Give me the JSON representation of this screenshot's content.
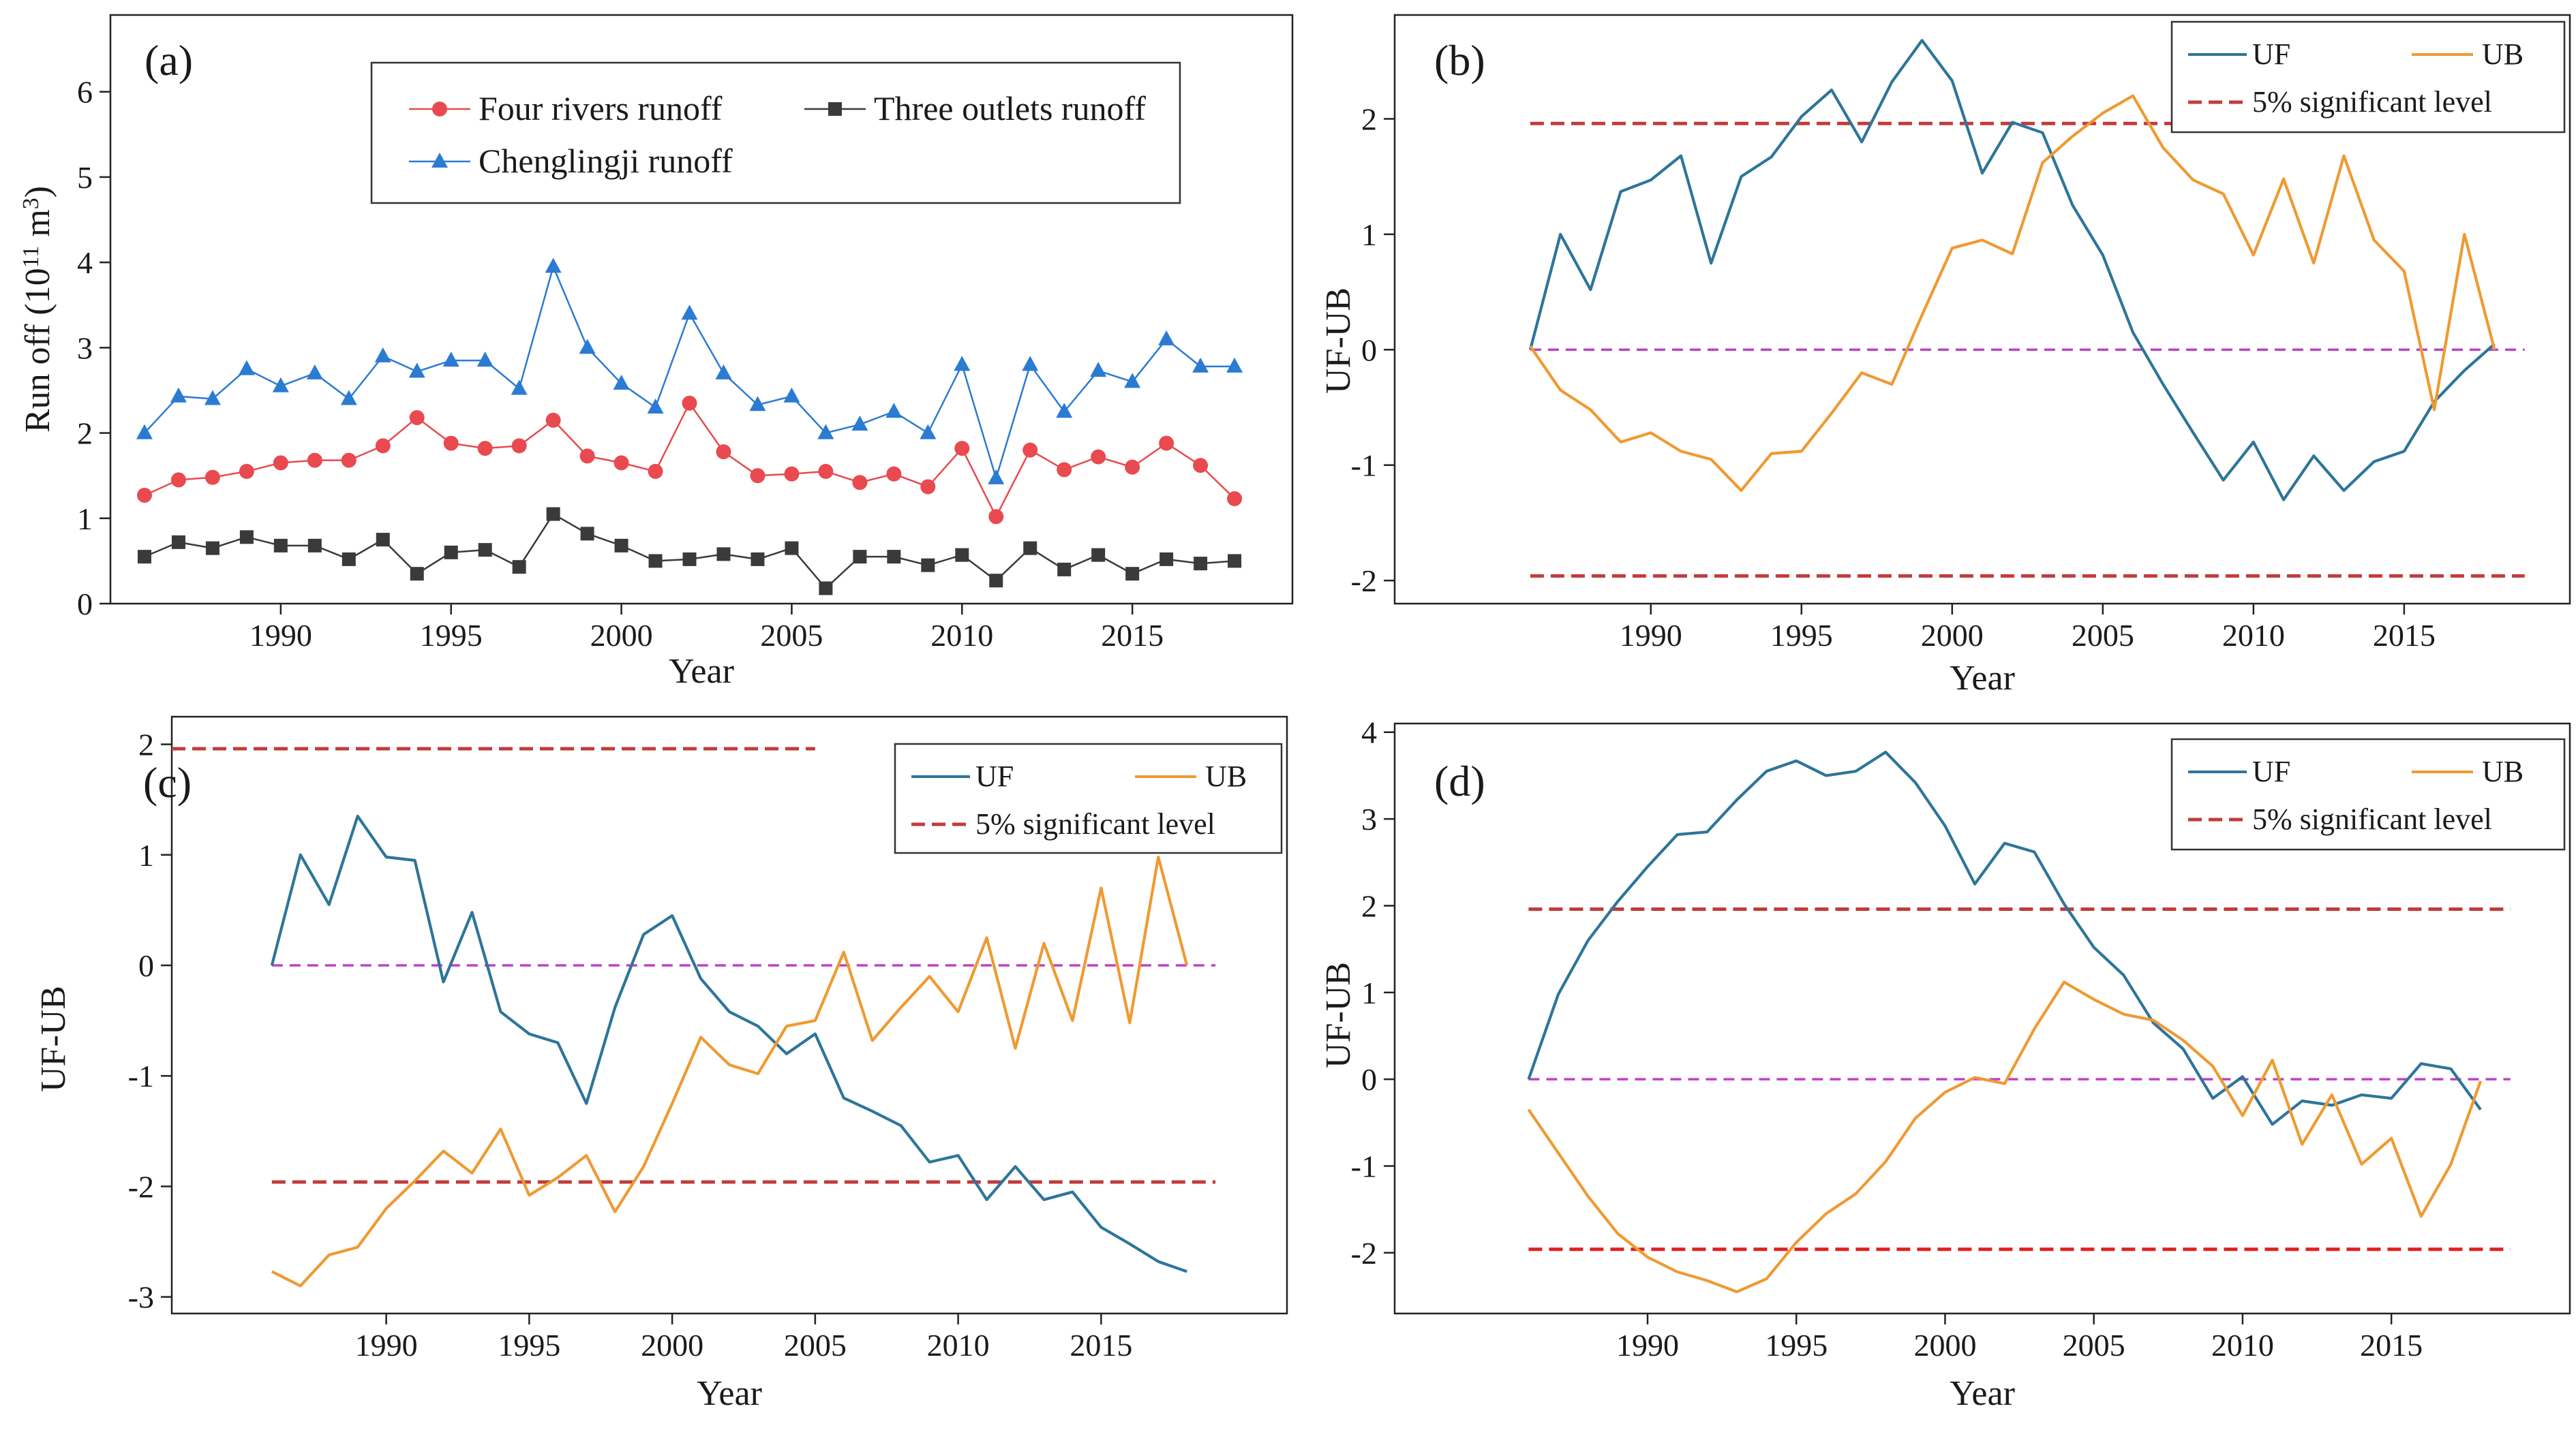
{
  "chart_data": [
    {
      "id": "a",
      "type": "line",
      "panel_label": "(a)",
      "xlabel": "Year",
      "ylabel": "Run off (10",
      "ylabel_sup": "11",
      "ylabel_tail": " m",
      "ylabel_sup2": "3",
      "ylabel_end": ")",
      "xlim": [
        1985,
        2019.7
      ],
      "ylim": [
        0,
        6.9
      ],
      "xticks": [
        1990,
        1995,
        2000,
        2005,
        2010,
        2015
      ],
      "yticks": [
        0,
        1,
        2,
        3,
        4,
        5,
        6
      ],
      "x": [
        1986,
        1987,
        1988,
        1989,
        1990,
        1991,
        1992,
        1993,
        1994,
        1995,
        1996,
        1997,
        1998,
        1999,
        2000,
        2001,
        2002,
        2003,
        2004,
        2005,
        2006,
        2007,
        2008,
        2009,
        2010,
        2011,
        2012,
        2013,
        2014,
        2015,
        2016,
        2017,
        2018
      ],
      "legend_position": "top",
      "series": [
        {
          "name": "Four rivers runoff",
          "color": "#e84a4f",
          "marker": "circle",
          "values": [
            1.27,
            1.45,
            1.48,
            1.55,
            1.65,
            1.68,
            1.68,
            1.85,
            2.18,
            1.88,
            1.82,
            1.85,
            2.15,
            1.73,
            1.65,
            1.55,
            2.35,
            1.78,
            1.5,
            1.52,
            1.55,
            1.42,
            1.52,
            1.37,
            1.82,
            1.02,
            1.8,
            1.57,
            1.72,
            1.6,
            1.88,
            1.62,
            1.23
          ]
        },
        {
          "name": "Three outlets runoff",
          "color": "#3a3a3a",
          "marker": "square",
          "values": [
            0.55,
            0.72,
            0.65,
            0.78,
            0.68,
            0.68,
            0.52,
            0.75,
            0.35,
            0.6,
            0.63,
            0.43,
            1.05,
            0.82,
            0.68,
            0.5,
            0.52,
            0.58,
            0.52,
            0.65,
            0.18,
            0.55,
            0.55,
            0.45,
            0.57,
            0.27,
            0.65,
            0.4,
            0.57,
            0.35,
            0.52,
            0.47,
            0.5
          ]
        },
        {
          "name": "Chenglingji runoff",
          "color": "#2b7bd2",
          "marker": "triangle",
          "values": [
            2.0,
            2.43,
            2.4,
            2.75,
            2.55,
            2.7,
            2.4,
            2.9,
            2.72,
            2.85,
            2.85,
            2.52,
            3.95,
            3.0,
            2.58,
            2.3,
            3.4,
            2.7,
            2.33,
            2.43,
            2.0,
            2.1,
            2.25,
            2.0,
            2.8,
            1.47,
            2.8,
            2.25,
            2.73,
            2.6,
            3.1,
            2.78,
            2.78
          ]
        }
      ]
    },
    {
      "id": "b",
      "type": "line",
      "panel_label": "(b)",
      "xlabel": "Year",
      "ylabel": "UF-UB",
      "xlim": [
        1981.5,
        2020.5
      ],
      "ylim": [
        -2.2,
        2.9
      ],
      "xticks": [
        1990,
        1995,
        2000,
        2005,
        2010,
        2015
      ],
      "yticks": [
        -2,
        -1,
        0,
        1,
        2
      ],
      "x": [
        1986,
        1987,
        1988,
        1989,
        1990,
        1991,
        1992,
        1993,
        1994,
        1995,
        1996,
        1997,
        1998,
        1999,
        2000,
        2001,
        2002,
        2003,
        2004,
        2005,
        2006,
        2007,
        2008,
        2009,
        2010,
        2011,
        2012,
        2013,
        2014,
        2015,
        2016,
        2017,
        2018
      ],
      "legend_position": "top-right",
      "legend_labels": [
        "UF",
        "UB",
        "5% significant level"
      ],
      "series": [
        {
          "name": "UF",
          "color": "#2e7599",
          "values": [
            0.0,
            1.0,
            0.52,
            1.37,
            1.47,
            1.68,
            0.75,
            1.5,
            1.67,
            2.02,
            2.25,
            1.8,
            2.32,
            2.68,
            2.33,
            1.53,
            1.97,
            1.88,
            1.25,
            0.82,
            0.15,
            -0.3,
            -0.72,
            -1.13,
            -0.8,
            -1.3,
            -0.92,
            -1.22,
            -0.97,
            -0.88,
            -0.45,
            -0.18,
            0.05
          ]
        },
        {
          "name": "UB",
          "color": "#ee9a32",
          "values": [
            0.03,
            -0.35,
            -0.52,
            -0.8,
            -0.72,
            -0.88,
            -0.95,
            -1.22,
            -0.9,
            -0.88,
            -0.55,
            -0.2,
            -0.3,
            0.3,
            0.88,
            0.95,
            0.83,
            1.62,
            1.85,
            2.05,
            2.2,
            1.75,
            1.47,
            1.35,
            0.82,
            1.48,
            0.75,
            1.68,
            0.95,
            0.68,
            -0.52,
            1.0,
            0.0
          ]
        }
      ],
      "reference_lines": [
        {
          "name": "5% significant level",
          "y": 1.96,
          "color": "#c23b3b",
          "x_start": 1986,
          "x_end": 2008
        },
        {
          "name": "5% significant level",
          "y": -1.96,
          "color": "#c23b3b",
          "x_start": 1986,
          "x_end": 2019
        },
        {
          "name": "zero",
          "y": 0,
          "color": "#c040c8",
          "x_start": 1986,
          "x_end": 2019
        }
      ]
    },
    {
      "id": "c",
      "type": "line",
      "panel_label": "(c)",
      "xlabel": "Year",
      "ylabel": "UF-UB",
      "xlim": [
        1982.5,
        2021.5
      ],
      "ylim": [
        -3.15,
        2.25
      ],
      "xticks": [
        1990,
        1995,
        2000,
        2005,
        2010,
        2015
      ],
      "yticks": [
        -3,
        -2,
        -1,
        0,
        1,
        2
      ],
      "x": [
        1986,
        1987,
        1988,
        1989,
        1990,
        1991,
        1992,
        1993,
        1994,
        1995,
        1996,
        1997,
        1998,
        1999,
        2000,
        2001,
        2002,
        2003,
        2004,
        2005,
        2006,
        2007,
        2008,
        2009,
        2010,
        2011,
        2012,
        2013,
        2014,
        2015,
        2016,
        2017,
        2018
      ],
      "legend_position": "top-right",
      "legend_labels": [
        "UF",
        "UB",
        "5% significant level"
      ],
      "series": [
        {
          "name": "UF",
          "color": "#2e7599",
          "values": [
            0.0,
            1.0,
            0.55,
            1.35,
            0.98,
            0.95,
            -0.15,
            0.48,
            -0.42,
            -0.62,
            -0.7,
            -1.25,
            -0.38,
            0.28,
            0.45,
            -0.12,
            -0.42,
            -0.55,
            -0.8,
            -0.62,
            -1.2,
            -1.32,
            -1.45,
            -1.78,
            -1.72,
            -2.12,
            -1.82,
            -2.12,
            -2.05,
            -2.37,
            -2.52,
            -2.68,
            -2.77
          ]
        },
        {
          "name": "UB",
          "color": "#ee9a32",
          "values": [
            -2.77,
            -2.9,
            -2.62,
            -2.55,
            -2.2,
            -1.95,
            -1.68,
            -1.88,
            -1.48,
            -2.08,
            -1.92,
            -1.72,
            -2.23,
            -1.82,
            -1.25,
            -0.65,
            -0.9,
            -0.98,
            -0.55,
            -0.5,
            0.12,
            -0.68,
            -0.38,
            -0.1,
            -0.42,
            0.25,
            -0.75,
            0.2,
            -0.5,
            0.7,
            -0.52,
            0.98,
            0.0
          ]
        }
      ],
      "reference_lines": [
        {
          "name": "5% significant level",
          "y": 1.96,
          "color": "#c23b3b",
          "x_start": 1982.5,
          "x_end": 2005
        },
        {
          "name": "5% significant level",
          "y": -1.96,
          "color": "#c23b3b",
          "x_start": 1986,
          "x_end": 2019
        },
        {
          "name": "zero",
          "y": 0,
          "color": "#c040c8",
          "x_start": 1986,
          "x_end": 2019
        }
      ]
    },
    {
      "id": "d",
      "type": "line",
      "panel_label": "(d)",
      "xlabel": "Year",
      "ylabel": "UF-UB",
      "xlim": [
        1981.5,
        2021
      ],
      "ylim": [
        -2.7,
        4.1
      ],
      "xticks": [
        1990,
        1995,
        2000,
        2005,
        2010,
        2015
      ],
      "yticks": [
        -2,
        -1,
        0,
        1,
        2,
        3,
        4
      ],
      "x": [
        1986,
        1987,
        1988,
        1989,
        1990,
        1991,
        1992,
        1993,
        1994,
        1995,
        1996,
        1997,
        1998,
        1999,
        2000,
        2001,
        2002,
        2003,
        2004,
        2005,
        2006,
        2007,
        2008,
        2009,
        2010,
        2011,
        2012,
        2013,
        2014,
        2015,
        2016,
        2017,
        2018
      ],
      "legend_position": "top-right",
      "legend_labels": [
        "UF",
        "UB",
        "5% significant level"
      ],
      "series": [
        {
          "name": "UF",
          "color": "#2e7599",
          "values": [
            0.0,
            0.98,
            1.6,
            2.05,
            2.45,
            2.82,
            2.85,
            3.22,
            3.55,
            3.67,
            3.5,
            3.55,
            3.77,
            3.42,
            2.92,
            2.25,
            2.72,
            2.62,
            2.02,
            1.52,
            1.2,
            0.65,
            0.35,
            -0.22,
            0.03,
            -0.52,
            -0.25,
            -0.3,
            -0.18,
            -0.22,
            0.18,
            0.12,
            -0.35
          ]
        },
        {
          "name": "UB",
          "color": "#ee9a32",
          "values": [
            -0.35,
            -0.85,
            -1.35,
            -1.78,
            -2.05,
            -2.22,
            -2.32,
            -2.45,
            -2.3,
            -1.88,
            -1.55,
            -1.32,
            -0.95,
            -0.45,
            -0.15,
            0.02,
            -0.05,
            0.58,
            1.12,
            0.92,
            0.75,
            0.68,
            0.45,
            0.15,
            -0.42,
            0.22,
            -0.75,
            -0.18,
            -0.98,
            -0.68,
            -1.58,
            -0.98,
            -0.02
          ]
        }
      ],
      "reference_lines": [
        {
          "name": "5% significant level",
          "y": 1.96,
          "color": "#c23b3b",
          "x_start": 1986,
          "x_end": 2019
        },
        {
          "name": "5% significant level",
          "y": -1.96,
          "color": "#e02020",
          "x_start": 1986,
          "x_end": 2019
        },
        {
          "name": "zero",
          "y": 0,
          "color": "#c040c8",
          "x_start": 1986,
          "x_end": 2019
        }
      ]
    }
  ]
}
